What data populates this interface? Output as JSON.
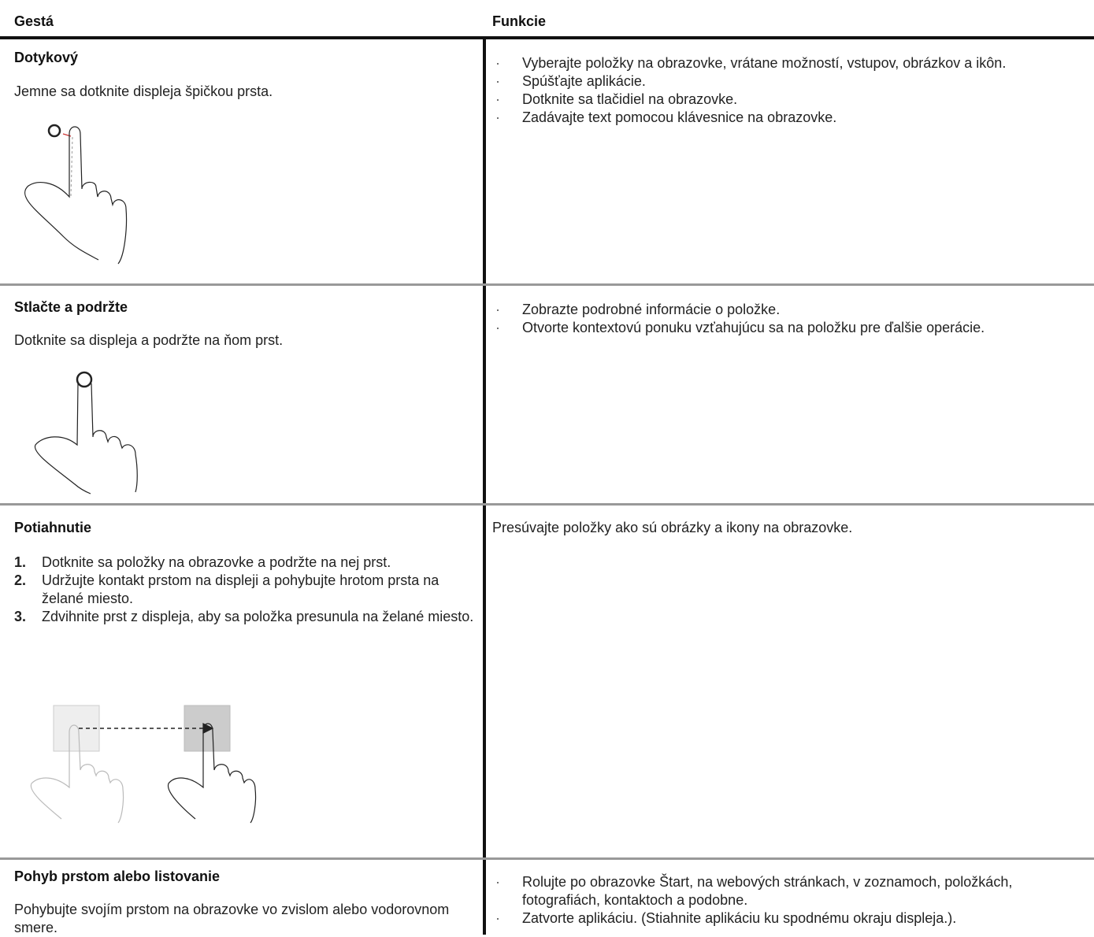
{
  "header": {
    "columns": [
      "Gestá",
      "Funkcie"
    ]
  },
  "table": {
    "rows": [
      {
        "title": "Dotykový",
        "description": "Jemne sa dotknite displeja špičkou prsta.",
        "functions": [
          "Vyberajte položky na obrazovke, vrátane možností, vstupov, obrázkov a ikôn.",
          "Spúšťajte aplikácie.",
          "Dotknite sa tlačidiel na obrazovke.",
          "Zadávajte text pomocou klávesnice na obrazovke."
        ]
      },
      {
        "title": "Stlačte a podržte",
        "description": "Dotknite sa displeja a podržte na ňom prst.",
        "functions": [
          "Zobrazte podrobné informácie o položke.",
          "Otvorte kontextovú ponuku vzťahujúcu sa na položku pre ďalšie operácie."
        ]
      },
      {
        "title": "Potiahnutie",
        "steps": [
          {
            "number": "1.",
            "text": "Dotknite sa položky na obrazovke a podržte na nej prst."
          },
          {
            "number": "2.",
            "text": "Udržujte kontakt prstom na displeji a pohybujte hrotom prsta na želané miesto."
          },
          {
            "number": "3.",
            "text": "Zdvihnite prst z displeja, aby sa položka presunula na želané miesto."
          }
        ],
        "function_text": "Presúvajte položky ako sú obrázky a ikony na obrazovke."
      },
      {
        "title": "Pohyb prstom alebo listovanie",
        "description": "Pohybujte svojím prstom na obrazovke vo zvislom alebo vodorovnom smere.",
        "functions": [
          "Rolujte po obrazovke Štart, na webových stránkach, v zoznamoch, položkách, fotografiách, kontaktoch a podobne.",
          "Zatvorte aplikáciu. (Stiahnite aplikáciu ku spodnému okraju displeja.)."
        ]
      }
    ]
  }
}
